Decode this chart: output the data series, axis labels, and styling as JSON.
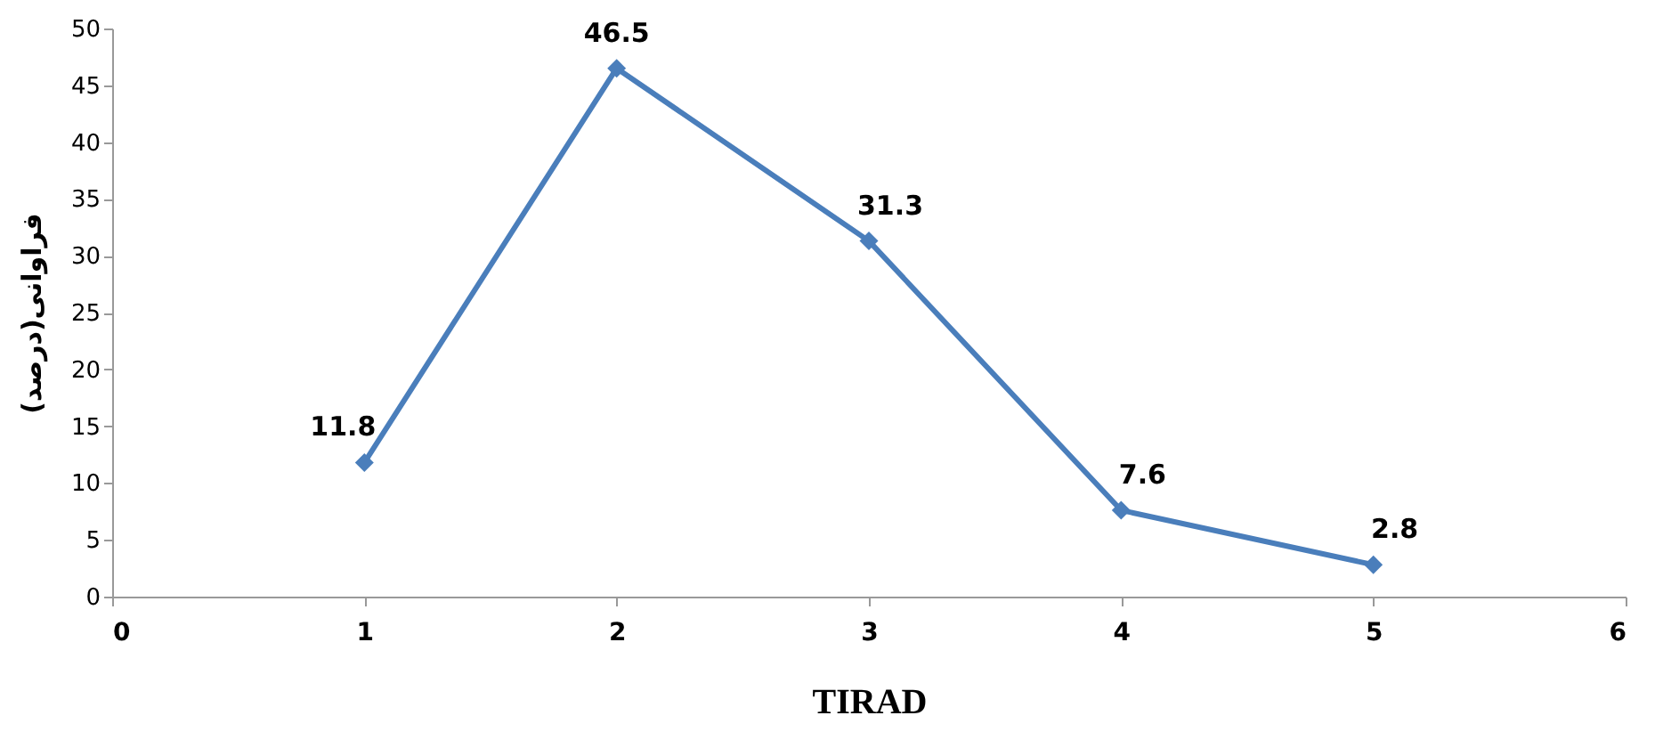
{
  "chart_data": {
    "type": "line",
    "xlabel": "TIRAD",
    "ylabel": "فراوانی(درصد)",
    "x": [
      1,
      2,
      3,
      4,
      5
    ],
    "series": [
      {
        "color": "#4a7ebb",
        "values": [
          11.8,
          46.5,
          31.3,
          7.6,
          2.8
        ]
      }
    ],
    "xlim": [
      0,
      6
    ],
    "xticks": [
      0,
      1,
      2,
      3,
      4,
      5,
      6
    ],
    "ylim": [
      0,
      50
    ],
    "yticks": [
      0,
      5,
      10,
      15,
      20,
      25,
      30,
      35,
      40,
      45,
      50
    ],
    "grid": false,
    "marker": "diamond",
    "line_style": "solid",
    "data_labels": true
  }
}
